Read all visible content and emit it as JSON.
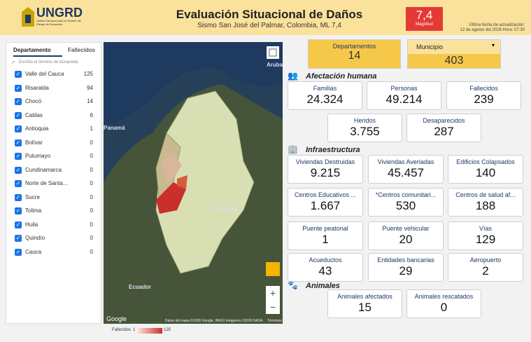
{
  "header": {
    "logo": "UNGRD",
    "logo_subtitle": "Unidad Nacional para la Gestión del Riesgo de Desastres",
    "title": "Evaluación Situacional de Daños",
    "subtitle": "Sismo San José del Palmar, Colombia, ML 7,4",
    "magnitude": {
      "value": "7,4",
      "label": "Magnitud"
    },
    "update": {
      "label": "Última fecha de actualización:",
      "date": "12 de agosto del 2026 Hora: 07:30"
    }
  },
  "filter": {
    "tabs": [
      "Departamento",
      "Fallecidos"
    ],
    "search_placeholder": "Escriba el término de búsqueda",
    "rows": [
      [
        "Valle del Cauca",
        "125"
      ],
      [
        "Risaralda",
        "94"
      ],
      [
        "Chocó",
        "14"
      ],
      [
        "Caldas",
        "6"
      ],
      [
        "Antioquia",
        "1"
      ],
      [
        "Bolívar",
        "0"
      ],
      [
        "Putumayo",
        "0"
      ],
      [
        "Cundinamarca",
        "0"
      ],
      [
        "Norte de Santa...",
        "0"
      ],
      [
        "Sucre",
        "0"
      ],
      [
        "Tolima",
        "0"
      ],
      [
        "Huila",
        "0"
      ],
      [
        "Quindío",
        "0"
      ],
      [
        "Cauca",
        "0"
      ]
    ]
  },
  "map": {
    "labels": [
      "Aruba",
      "Panamá",
      "Colombia",
      "Ecuador"
    ],
    "google": "Google",
    "attribution": "Datos del mapa ©2026 Google, INEGI Imágenes ©2026 NASA",
    "terms": "Términos"
  },
  "legend": {
    "title": "Fallecidos",
    "min": "1",
    "max": "125"
  },
  "summary": {
    "departamentos": {
      "label": "Departamentos",
      "value": "14"
    },
    "municipio": {
      "label": "Municipio",
      "value": "403"
    }
  },
  "sections": [
    {
      "title": "Afectación humana",
      "cards": [
        {
          "label": "Familias",
          "value": "24.324"
        },
        {
          "label": "Personas",
          "value": "49.214"
        },
        {
          "label": "Fallecidos",
          "value": "239"
        },
        {
          "label": "Heridos",
          "value": "3.755"
        },
        {
          "label": "Desaparecidos",
          "value": "287"
        }
      ]
    },
    {
      "title": "Infraestructura",
      "cards": [
        {
          "label": "Viviendas Destruidas",
          "value": "9.215"
        },
        {
          "label": "Viviendas Averiadas",
          "value": "45.457"
        },
        {
          "label": "Edificios Colapsados",
          "value": "140"
        },
        {
          "label": "Centros Educativos ...",
          "value": "1.667"
        },
        {
          "label": "*Centros comunitari...",
          "value": "530"
        },
        {
          "label": "Centros de salud af...",
          "value": "188"
        },
        {
          "label": "Puente peatonal",
          "value": "1"
        },
        {
          "label": "Puente vehicular",
          "value": "20"
        },
        {
          "label": "Vías",
          "value": "129"
        },
        {
          "label": "Acueductos",
          "value": "43"
        },
        {
          "label": "Entidades bancarias",
          "value": "29"
        },
        {
          "label": "Aeropuerto",
          "value": "2"
        }
      ]
    },
    {
      "title": "Animales",
      "cards": [
        {
          "label": "Animales afectados",
          "value": "15"
        },
        {
          "label": "Animales rescatados",
          "value": "0"
        }
      ]
    }
  ]
}
